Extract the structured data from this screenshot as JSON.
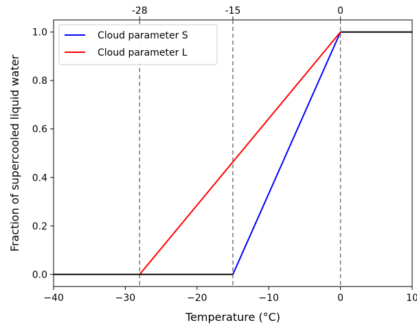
{
  "chart_data": {
    "type": "line",
    "title": "",
    "xlabel": "Temperature (°C)",
    "ylabel": "Fraction of supercooled liquid water",
    "xlim": [
      -40,
      10
    ],
    "ylim": [
      -0.05,
      1.05
    ],
    "x_ticks": [
      -40,
      -30,
      -20,
      -10,
      0,
      10
    ],
    "x_tick_labels": [
      "−40",
      "−30",
      "−20",
      "−10",
      "0",
      "10"
    ],
    "y_ticks": [
      0.0,
      0.2,
      0.4,
      0.6,
      0.8,
      1.0
    ],
    "y_tick_labels": [
      "0.0",
      "0.2",
      "0.4",
      "0.6",
      "0.8",
      "1.0"
    ],
    "top_ticks": [
      -28,
      -15,
      0
    ],
    "top_tick_labels": [
      "-28",
      "-15",
      "0"
    ],
    "vlines": [
      -28,
      -15,
      0
    ],
    "grid": false,
    "legend_position": "upper-left",
    "series": [
      {
        "name": "Cloud parameter S",
        "color": "#0000ff",
        "x": [
          -15,
          0
        ],
        "y": [
          0.0,
          1.0
        ]
      },
      {
        "name": "Cloud parameter L",
        "color": "#ff0000",
        "x": [
          -28,
          0
        ],
        "y": [
          0.0,
          1.0
        ]
      },
      {
        "color": "#000000",
        "x": [
          -40,
          -15
        ],
        "y": [
          0.0,
          0.0
        ]
      },
      {
        "color": "#000000",
        "x": [
          0,
          10
        ],
        "y": [
          1.0,
          1.0
        ]
      }
    ]
  }
}
